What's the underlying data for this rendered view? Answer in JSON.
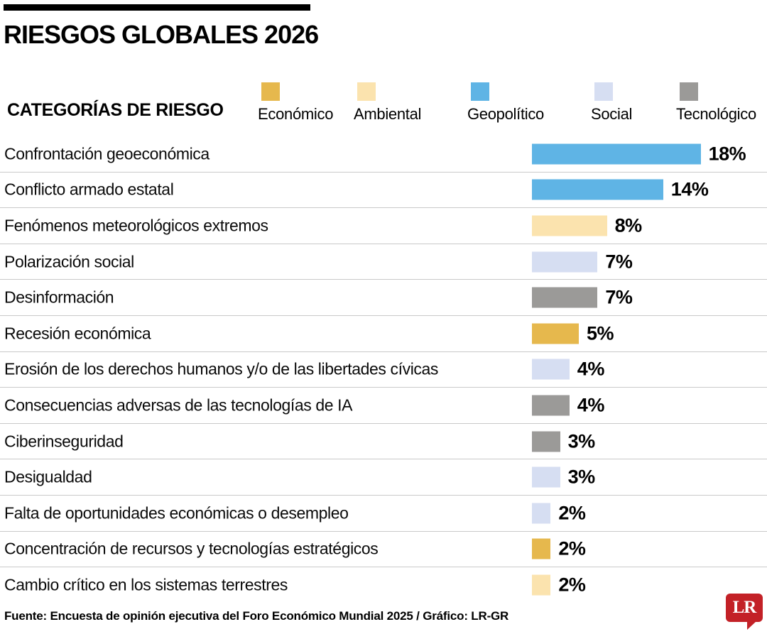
{
  "header": {
    "title": "RIESGOS GLOBALES 2026"
  },
  "legend": {
    "heading": "CATEGORÍAS DE RIESGO",
    "items": [
      {
        "label": "Económico",
        "color": "#E6B84D"
      },
      {
        "label": "Ambiental",
        "color": "#FBE3AE"
      },
      {
        "label": "Geopolítico",
        "color": "#5FB4E5"
      },
      {
        "label": "Social",
        "color": "#D6DEF2"
      },
      {
        "label": "Tecnológico",
        "color": "#9B9A98"
      }
    ]
  },
  "colors": {
    "Económico": "#E6B84D",
    "Ambiental": "#FBE3AE",
    "Geopolítico": "#5FB4E5",
    "Social": "#D6DEF2",
    "Tecnológico": "#9B9A98",
    "logo_red": "#C32127",
    "separator": "#C9C9C9"
  },
  "chart_data": {
    "type": "bar",
    "orientation": "horizontal",
    "title": "RIESGOS GLOBALES 2026",
    "legend_title": "CATEGORÍAS DE RIESGO",
    "legend_position": "top",
    "grid": false,
    "value_unit": "%",
    "value_range": [
      0,
      18
    ],
    "categories_legend": [
      "Económico",
      "Ambiental",
      "Geopolítico",
      "Social",
      "Tecnológico"
    ],
    "rows": [
      {
        "label": "Confrontación geoeconómica",
        "value": 18,
        "display": "18%",
        "category": "Geopolítico"
      },
      {
        "label": "Conflicto armado estatal",
        "value": 14,
        "display": "14%",
        "category": "Geopolítico"
      },
      {
        "label": "Fenómenos meteorológicos extremos",
        "value": 8,
        "display": "8%",
        "category": "Ambiental"
      },
      {
        "label": "Polarización social",
        "value": 7,
        "display": "7%",
        "category": "Social"
      },
      {
        "label": "Desinformación",
        "value": 7,
        "display": "7%",
        "category": "Tecnológico"
      },
      {
        "label": "Recesión económica",
        "value": 5,
        "display": "5%",
        "category": "Económico"
      },
      {
        "label": "Erosión de los derechos humanos y/o de las libertades cívicas",
        "value": 4,
        "display": "4%",
        "category": "Social"
      },
      {
        "label": "Consecuencias adversas de las tecnologías de IA",
        "value": 4,
        "display": "4%",
        "category": "Tecnológico"
      },
      {
        "label": "Ciberinseguridad",
        "value": 3,
        "display": "3%",
        "category": "Tecnológico"
      },
      {
        "label": "Desigualdad",
        "value": 3,
        "display": "3%",
        "category": "Social"
      },
      {
        "label": "Falta de oportunidades económicas o desempleo",
        "value": 2,
        "display": "2%",
        "category": "Social"
      },
      {
        "label": "Concentración de recursos y tecnologías estratégicos",
        "value": 2,
        "display": "2%",
        "category": "Económico"
      },
      {
        "label": "Cambio crítico en los sistemas terrestres",
        "value": 2,
        "display": "2%",
        "category": "Ambiental"
      }
    ]
  },
  "footer": {
    "source": "Fuente: Encuesta de opinión ejecutiva del Foro Económico Mundial 2025 / Gráfico: LR-GR",
    "logo_text": "LR"
  }
}
